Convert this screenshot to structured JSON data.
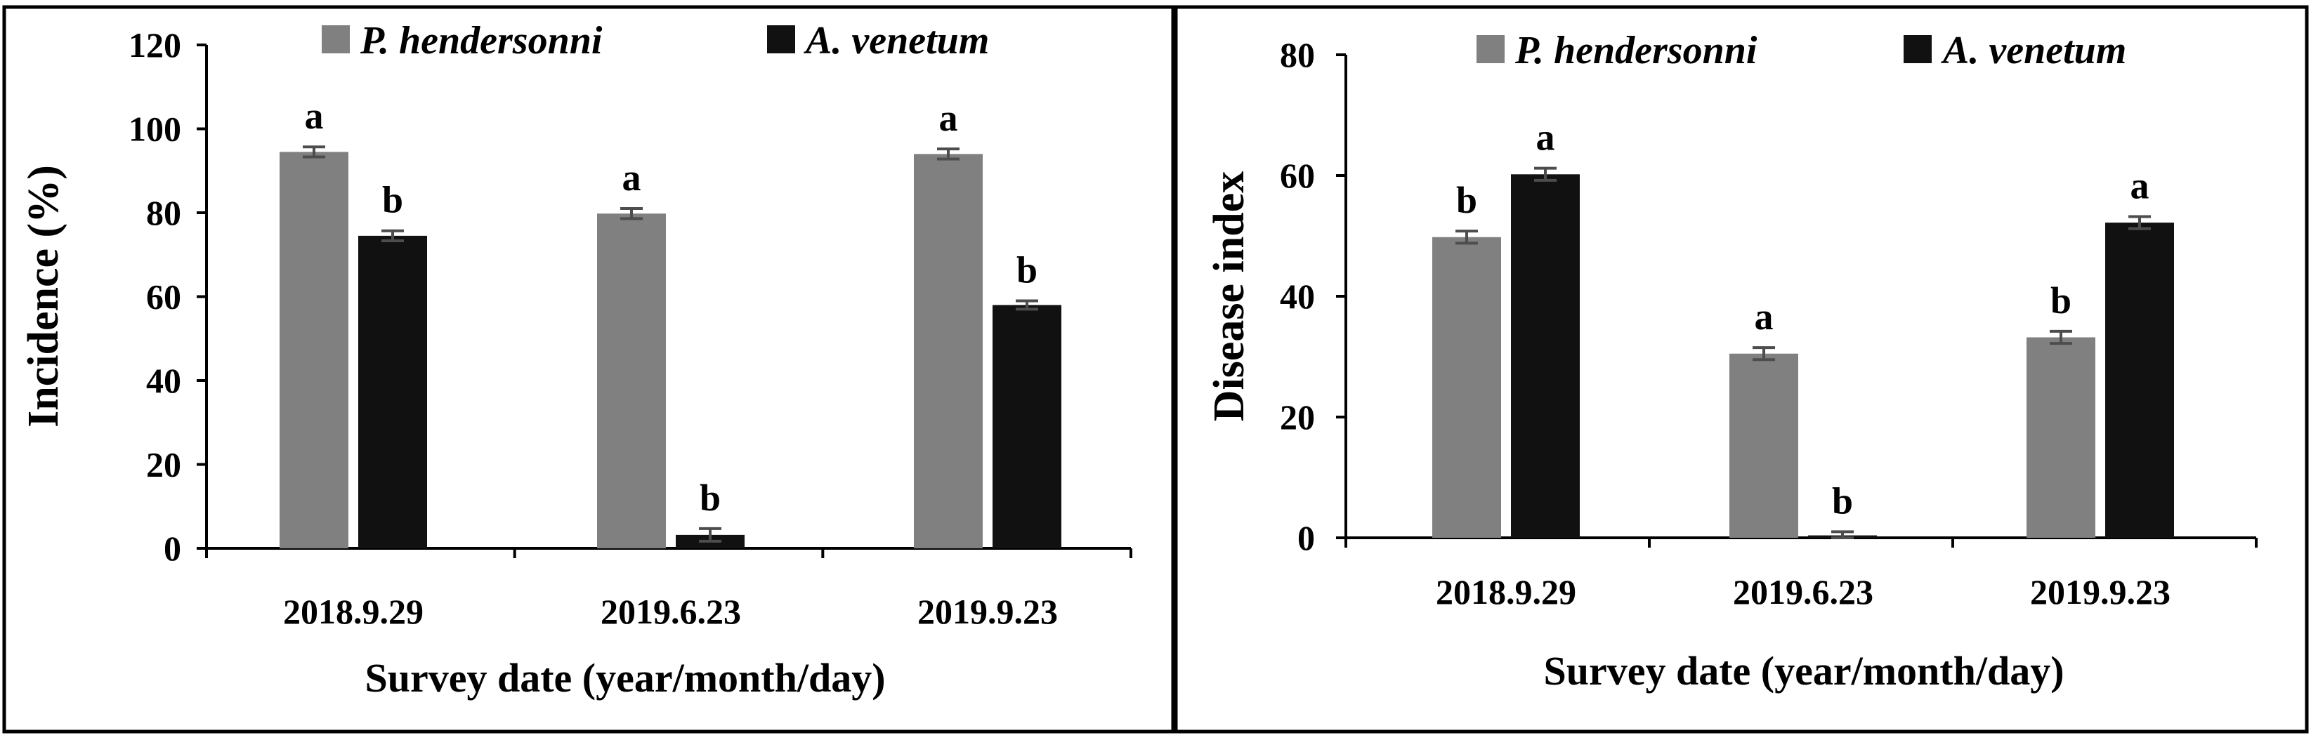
{
  "chart_data": [
    {
      "type": "bar",
      "title": "",
      "xlabel": "Survey date (year/month/day)",
      "ylabel": "Incidence (%)",
      "ylim": [
        0,
        120
      ],
      "yticks": [
        0,
        20,
        40,
        60,
        80,
        100,
        120
      ],
      "categories": [
        "2018.9.29",
        "2019.6.23",
        "2019.9.23"
      ],
      "legend_position": "top",
      "series": [
        {
          "name": "P. hendersonni",
          "color": "#808080",
          "values": [
            94.5,
            79.8,
            94.0
          ],
          "errors": [
            1.2,
            1.2,
            1.2
          ],
          "letters": [
            "a",
            "a",
            "a"
          ]
        },
        {
          "name": "A. venetum",
          "color": "#111111",
          "values": [
            74.5,
            3.2,
            58.0
          ],
          "errors": [
            1.2,
            1.5,
            1.0
          ],
          "letters": [
            "b",
            "b",
            "b"
          ]
        }
      ]
    },
    {
      "type": "bar",
      "title": "",
      "xlabel": "Survey date (year/month/day)",
      "ylabel": "Disease index",
      "ylim": [
        0,
        80
      ],
      "yticks": [
        0,
        20,
        40,
        60,
        80
      ],
      "categories": [
        "2018.9.29",
        "2019.6.23",
        "2019.9.23"
      ],
      "legend_position": "top",
      "series": [
        {
          "name": "P. hendersonni",
          "color": "#808080",
          "values": [
            49.8,
            30.5,
            33.2
          ],
          "errors": [
            1.0,
            1.0,
            1.0
          ],
          "letters": [
            "b",
            "a",
            "b"
          ]
        },
        {
          "name": "A. venetum",
          "color": "#111111",
          "values": [
            60.2,
            0.4,
            52.2
          ],
          "errors": [
            1.0,
            0.6,
            1.0
          ],
          "letters": [
            "a",
            "b",
            "a"
          ]
        }
      ]
    }
  ]
}
